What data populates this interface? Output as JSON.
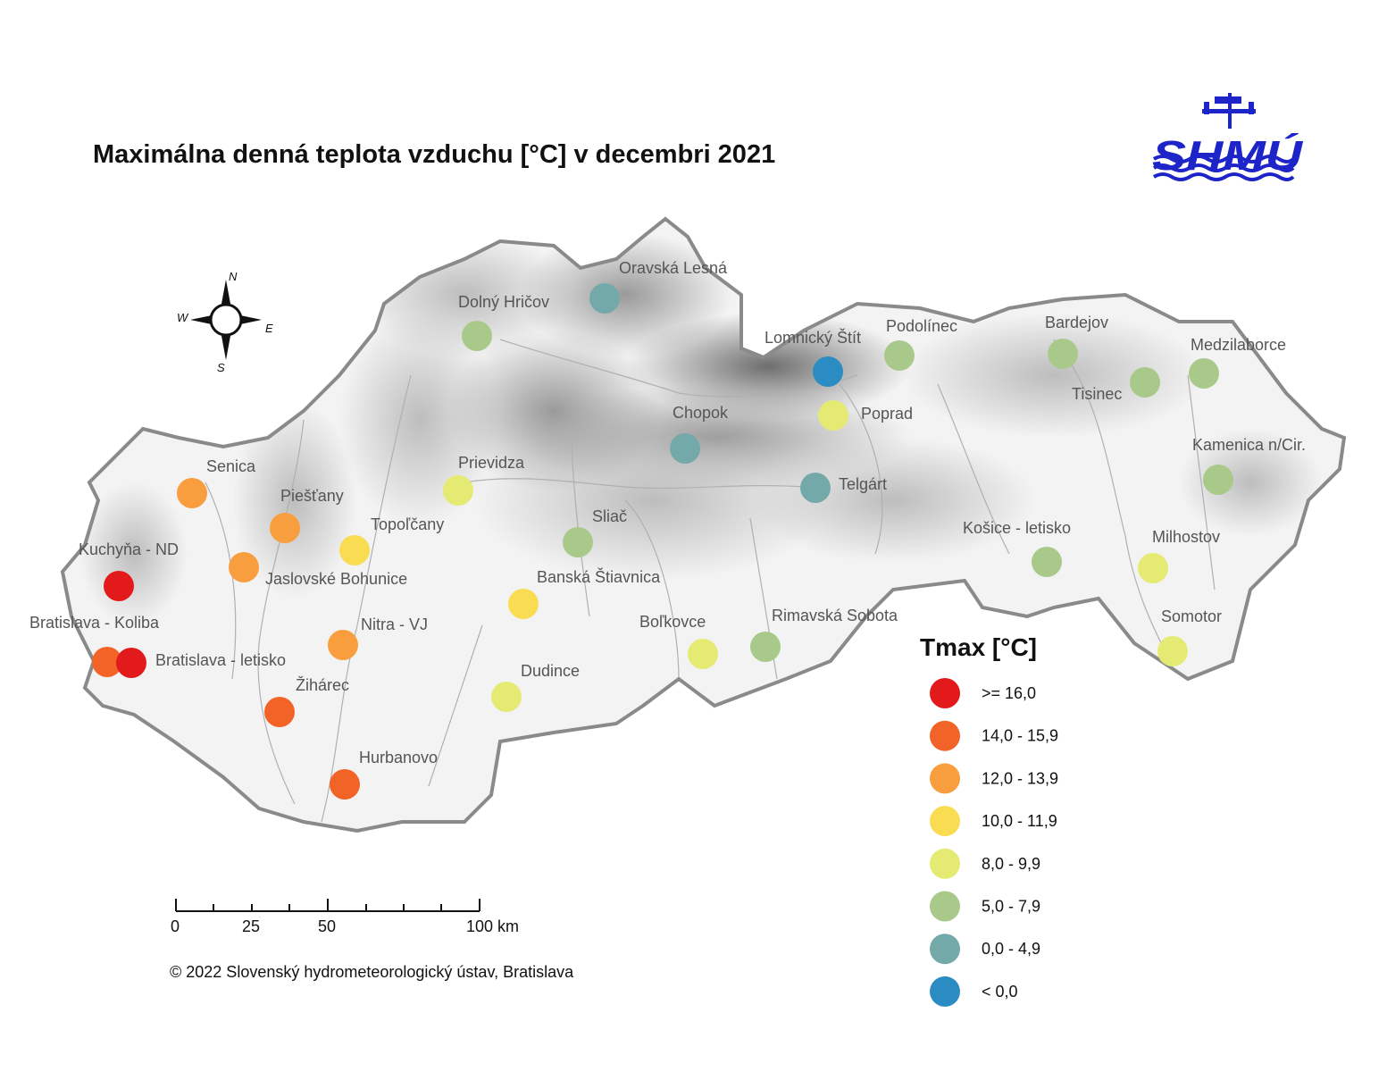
{
  "title": "Maximálna denná teplota vzduchu [°C] v decembri 2021",
  "logo": {
    "text": "SHMÚ",
    "color": "#1d24c8"
  },
  "compass": {
    "n": "N",
    "e": "E",
    "s": "S",
    "w": "W"
  },
  "legend": {
    "title": "Tmax [°C]",
    "classes": [
      {
        "label": ">= 16,0",
        "color": "#e31a1c"
      },
      {
        "label": "14,0 - 15,9",
        "color": "#f26328"
      },
      {
        "label": "12,0 - 13,9",
        "color": "#f99e3e"
      },
      {
        "label": "10,0 - 11,9",
        "color": "#fadc52"
      },
      {
        "label": "8,0 - 9,9",
        "color": "#e5ea72"
      },
      {
        "label": "5,0 - 7,9",
        "color": "#a9c98b"
      },
      {
        "label": "0,0 - 4,9",
        "color": "#74a9a9"
      },
      {
        "label": "< 0,0",
        "color": "#2b8cc4"
      }
    ]
  },
  "scale_bar": {
    "labels": [
      "0",
      "25",
      "50",
      "100 km"
    ]
  },
  "copyright": "© 2022 Slovenský hydrometeorologický ústav, Bratislava",
  "stations": [
    {
      "name": "Oravská Lesná",
      "class": 6
    },
    {
      "name": "Dolný Hričov",
      "class": 5
    },
    {
      "name": "Lomnický Štít",
      "class": 7
    },
    {
      "name": "Podolínec",
      "class": 5
    },
    {
      "name": "Bardejov",
      "class": 5
    },
    {
      "name": "Medzilaborce",
      "class": 5
    },
    {
      "name": "Tisinec",
      "class": 5
    },
    {
      "name": "Poprad",
      "class": 4
    },
    {
      "name": "Chopok",
      "class": 6
    },
    {
      "name": "Kamenica n/Cir.",
      "class": 5
    },
    {
      "name": "Senica",
      "class": 2
    },
    {
      "name": "Prievidza",
      "class": 4
    },
    {
      "name": "Telgárt",
      "class": 6
    },
    {
      "name": "Piešťany",
      "class": 2
    },
    {
      "name": "Topoľčany",
      "class": 3
    },
    {
      "name": "Sliač",
      "class": 5
    },
    {
      "name": "Košice - letisko",
      "class": 5
    },
    {
      "name": "Milhostov",
      "class": 4
    },
    {
      "name": "Kuchyňa - ND",
      "class": 0
    },
    {
      "name": "Jaslovské Bohunice",
      "class": 2
    },
    {
      "name": "Banská Štiavnica",
      "class": 3
    },
    {
      "name": "Bratislava - Koliba",
      "class": 1
    },
    {
      "name": "Nitra - VJ",
      "class": 2
    },
    {
      "name": "Boľkovce",
      "class": 4
    },
    {
      "name": "Rimavská Sobota",
      "class": 5
    },
    {
      "name": "Somotor",
      "class": 4
    },
    {
      "name": "Bratislava - letisko",
      "class": 0
    },
    {
      "name": "Žihárec",
      "class": 1
    },
    {
      "name": "Dudince",
      "class": 4
    },
    {
      "name": "Hurbanovo",
      "class": 1
    }
  ]
}
